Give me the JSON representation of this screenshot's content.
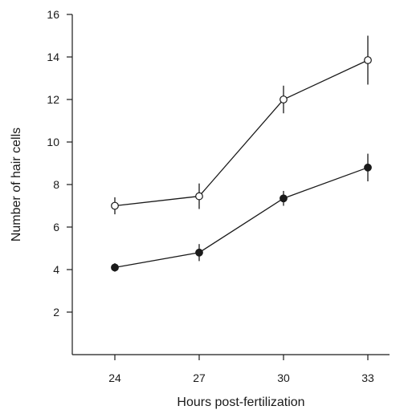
{
  "chart_data": {
    "type": "line",
    "title": "",
    "xlabel": "Hours post-fertilization",
    "ylabel": "Number of hair cells",
    "x": [
      24,
      27,
      30,
      33
    ],
    "xticks": [
      "24",
      "27",
      "30",
      "33"
    ],
    "xlim": [
      23,
      35
    ],
    "yticks": [
      "2",
      "4",
      "6",
      "8",
      "10",
      "12",
      "14",
      "16"
    ],
    "ylim": [
      0,
      16
    ],
    "grid": false,
    "legend": "none",
    "series": [
      {
        "marker": "open-circle",
        "fill": "#ffffff",
        "values": [
          7.0,
          7.45,
          12.0,
          13.85
        ],
        "errors": [
          0.4,
          0.6,
          0.65,
          1.15
        ]
      },
      {
        "marker": "filled-circle",
        "fill": "#1a1a1a",
        "values": [
          4.1,
          4.8,
          7.35,
          8.8
        ],
        "errors": [
          0.2,
          0.4,
          0.35,
          0.65
        ]
      }
    ]
  }
}
